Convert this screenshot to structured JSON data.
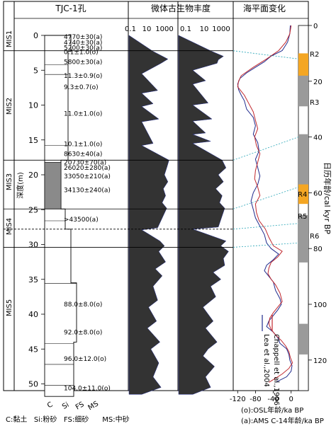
{
  "headers": {
    "core": "TJC-1孔",
    "microfossil": "微体古生物丰度",
    "sea_level": "海平面变化"
  },
  "abundance_axis": {
    "panel1_ticks": [
      "0.1",
      "10",
      "1000"
    ],
    "panel2_ticks": [
      "0.1",
      "10",
      "1000"
    ]
  },
  "mis_labels": [
    "MIS1",
    "MIS2",
    "MIS3",
    "MIS4",
    "MIS5"
  ],
  "depth_axis": {
    "label": "深度(m)",
    "ticks": [
      "0",
      "5",
      "10",
      "15",
      "20",
      "25",
      "30",
      "35",
      "40",
      "45",
      "50"
    ]
  },
  "age_axis": {
    "label": "日历年龄/cal kyr BP",
    "ticks": [
      "0",
      "20",
      "40",
      "60",
      "80",
      "100",
      "120"
    ]
  },
  "sea_level_axis": {
    "ticks": [
      "-120",
      "-80",
      "-40",
      "0"
    ],
    "label1": "(o):OSL年龄/ka BP",
    "label2": "(a):AMS C-14年龄/ka BP"
  },
  "r_labels": [
    "R2",
    "R3",
    "R4",
    "R5",
    "R6"
  ],
  "legend": {
    "lea": "Lea et al.,2004",
    "chappell": "Chappell et al.,1996",
    "lea_color": "#1f2a8c",
    "chappell_color": "#c0282e"
  },
  "dates": [
    {
      "text": "4770±30(a)",
      "depth": 0.2
    },
    {
      "text": "4740±30(a)",
      "depth": 1.0
    },
    {
      "text": "5200±30(a)",
      "depth": 1.8
    },
    {
      "text": "0.1±1.0(o)",
      "depth": 2.4
    },
    {
      "text": "5800±30(a)",
      "depth": 3.8
    },
    {
      "text": "11.3±0.9(o)",
      "depth": 5.8
    },
    {
      "text": "9.3±0.7(o)",
      "depth": 7.4
    },
    {
      "text": "11.0±1.0(o)",
      "depth": 11.2
    },
    {
      "text": "10.1±1.0(o)",
      "depth": 15.6
    },
    {
      "text": "8630±40(a)",
      "depth": 17.0
    },
    {
      "text": "20730±70(a)",
      "depth": 18.2
    },
    {
      "text": "26020±280(a)",
      "depth": 19.0
    },
    {
      "text": "33050±210(a)",
      "depth": 20.2
    },
    {
      "text": "34130±240(a)",
      "depth": 22.2
    },
    {
      "text": ">43500(a)",
      "depth": 26.4
    },
    {
      "text": "88.0±8.0(o)",
      "depth": 38.6
    },
    {
      "text": "92.0±8.0(o)",
      "depth": 42.6
    },
    {
      "text": "96.0±12.0(o)",
      "depth": 46.4
    },
    {
      "text": "104.0±11.0(o)",
      "depth": 50.6
    }
  ],
  "grain_labels": [
    "C",
    "Si",
    "FS",
    "MS"
  ],
  "grain_legend": "C:黏土   Si:粉砂   FS:细砂      MS:中砂",
  "chart_data": {
    "type": "line",
    "boundaries_depth_m": [
      2.2,
      17.9,
      24.9,
      27.8,
      30.4
    ],
    "sea_level": {
      "xlim": [
        -130,
        10
      ],
      "ylim_age_kyr": [
        0,
        128
      ],
      "series": [
        {
          "name": "Lea et al.,2004",
          "points": [
            [
              0,
              -2
            ],
            [
              3,
              -3
            ],
            [
              6,
              -8
            ],
            [
              9,
              -20
            ],
            [
              11,
              -45
            ],
            [
              13,
              -60
            ],
            [
              15,
              -80
            ],
            [
              17,
              -100
            ],
            [
              19,
              -115
            ],
            [
              21,
              -120
            ],
            [
              23,
              -118
            ],
            [
              25,
              -112
            ],
            [
              27,
              -105
            ],
            [
              30,
              -100
            ],
            [
              33,
              -85
            ],
            [
              36,
              -80
            ],
            [
              39,
              -85
            ],
            [
              42,
              -75
            ],
            [
              45,
              -72
            ],
            [
              48,
              -80
            ],
            [
              51,
              -75
            ],
            [
              54,
              -70
            ],
            [
              57,
              -75
            ],
            [
              60,
              -85
            ],
            [
              63,
              -90
            ],
            [
              66,
              -85
            ],
            [
              69,
              -80
            ],
            [
              72,
              -70
            ],
            [
              75,
              -60
            ],
            [
              78,
              -55
            ],
            [
              80,
              -45
            ],
            [
              82,
              -28
            ],
            [
              84,
              -40
            ],
            [
              86,
              -55
            ],
            [
              88,
              -60
            ],
            [
              90,
              -50
            ],
            [
              92,
              -40
            ],
            [
              95,
              -35
            ],
            [
              98,
              -25
            ],
            [
              100,
              -22
            ],
            [
              102,
              -30
            ],
            [
              104,
              -40
            ],
            [
              106,
              -50
            ],
            [
              108,
              -55
            ],
            [
              110,
              -40
            ],
            [
              112,
              -30
            ],
            [
              114,
              -25
            ],
            [
              116,
              -10
            ],
            [
              118,
              -5
            ],
            [
              120,
              -3
            ],
            [
              122,
              2
            ],
            [
              124,
              0
            ],
            [
              126,
              -10
            ],
            [
              128,
              -35
            ]
          ]
        },
        {
          "name": "Chappell et al.,1996",
          "points": [
            [
              0,
              0
            ],
            [
              3,
              -3
            ],
            [
              6,
              -12
            ],
            [
              9,
              -28
            ],
            [
              12,
              -55
            ],
            [
              15,
              -85
            ],
            [
              18,
              -112
            ],
            [
              20,
              -118
            ],
            [
              22,
              -120
            ],
            [
              25,
              -105
            ],
            [
              28,
              -95
            ],
            [
              31,
              -85
            ],
            [
              34,
              -80
            ],
            [
              37,
              -75
            ],
            [
              40,
              -82
            ],
            [
              43,
              -78
            ],
            [
              46,
              -70
            ],
            [
              49,
              -75
            ],
            [
              52,
              -80
            ],
            [
              55,
              -82
            ],
            [
              58,
              -75
            ],
            [
              61,
              -70
            ],
            [
              64,
              -80
            ],
            [
              67,
              -78
            ],
            [
              70,
              -72
            ],
            [
              73,
              -58
            ],
            [
              76,
              -50
            ],
            [
              79,
              -40
            ],
            [
              81,
              -20
            ],
            [
              83,
              -30
            ],
            [
              85,
              -45
            ],
            [
              87,
              -50
            ],
            [
              89,
              -52
            ],
            [
              91,
              -45
            ],
            [
              93,
              -35
            ],
            [
              96,
              -25
            ],
            [
              99,
              -20
            ],
            [
              101,
              -30
            ],
            [
              103,
              -40
            ],
            [
              105,
              -48
            ],
            [
              107,
              -50
            ],
            [
              109,
              -45
            ],
            [
              111,
              -35
            ],
            [
              113,
              -22
            ],
            [
              115,
              -12
            ],
            [
              117,
              -5
            ],
            [
              119,
              -2
            ],
            [
              121,
              3
            ],
            [
              123,
              -5
            ],
            [
              125,
              -20
            ],
            [
              127,
              -40
            ],
            [
              128,
              -50
            ]
          ]
        }
      ]
    },
    "abundance_panel1": {
      "x": "log10 abundance",
      "profile": [
        [
          2.3,
          1.0
        ],
        [
          2.8,
          1.6
        ],
        [
          3.4,
          2.3
        ],
        [
          4.0,
          1.7
        ],
        [
          5.5,
          0
        ],
        [
          7.9,
          1.4
        ],
        [
          8.3,
          0
        ],
        [
          9.8,
          1.0
        ],
        [
          10.2,
          0
        ],
        [
          12.0,
          1.5
        ],
        [
          12.4,
          0
        ],
        [
          15.5,
          1.0
        ],
        [
          15.8,
          0
        ],
        [
          17.9,
          2.4
        ],
        [
          19,
          2.2
        ],
        [
          20,
          2.0
        ],
        [
          21,
          2.3
        ],
        [
          22,
          1.9
        ],
        [
          23,
          2.1
        ],
        [
          24,
          1.8
        ],
        [
          24.8,
          2.2
        ],
        [
          27.6,
          1.4
        ],
        [
          27.9,
          0
        ],
        [
          29.5,
          1.6
        ],
        [
          30.2,
          2.0
        ],
        [
          31,
          1.5
        ],
        [
          32.5,
          2.1
        ],
        [
          33.5,
          1.2
        ],
        [
          34.5,
          1.8
        ],
        [
          36,
          1.0
        ],
        [
          38,
          1.4
        ],
        [
          39,
          0.6
        ],
        [
          41,
          1.3
        ],
        [
          42,
          0.5
        ],
        [
          44,
          1.6
        ],
        [
          45,
          0.8
        ],
        [
          47,
          1.5
        ],
        [
          49,
          1.0
        ],
        [
          50.5,
          1.7
        ],
        [
          51.5,
          0
        ]
      ]
    },
    "abundance_panel2": {
      "x": "log10 abundance",
      "profile": [
        [
          2.3,
          1.5
        ],
        [
          3.0,
          2.4
        ],
        [
          3.5,
          2.0
        ],
        [
          4.0,
          1.9
        ],
        [
          5.0,
          0
        ],
        [
          6.5,
          1.0
        ],
        [
          7.0,
          0
        ],
        [
          9.7,
          1.2
        ],
        [
          10.0,
          0
        ],
        [
          12.0,
          1.5
        ],
        [
          12.3,
          0
        ],
        [
          14.0,
          1.0
        ],
        [
          14.2,
          0
        ],
        [
          15.2,
          1.4
        ],
        [
          15.5,
          0
        ],
        [
          17.9,
          2.3
        ],
        [
          19,
          2.6
        ],
        [
          20,
          2.0
        ],
        [
          21,
          2.4
        ],
        [
          22,
          1.8
        ],
        [
          23,
          2.3
        ],
        [
          24,
          2.1
        ],
        [
          24.8,
          2.5
        ],
        [
          27.5,
          2.0
        ],
        [
          27.8,
          0
        ],
        [
          29.5,
          2.6
        ],
        [
          30.2,
          2.2
        ],
        [
          31,
          2.8
        ],
        [
          32,
          2.4
        ],
        [
          33,
          2.5
        ],
        [
          34,
          1.6
        ],
        [
          35,
          2.2
        ],
        [
          36,
          1.4
        ],
        [
          37.5,
          1.8
        ],
        [
          39,
          0.8
        ],
        [
          41,
          1.6
        ],
        [
          42,
          1.0
        ],
        [
          44,
          1.9
        ],
        [
          45,
          1.2
        ],
        [
          46,
          0.8
        ],
        [
          47.5,
          1.7
        ],
        [
          49,
          1.0
        ],
        [
          50.5,
          1.4
        ],
        [
          51.5,
          0
        ]
      ]
    }
  }
}
